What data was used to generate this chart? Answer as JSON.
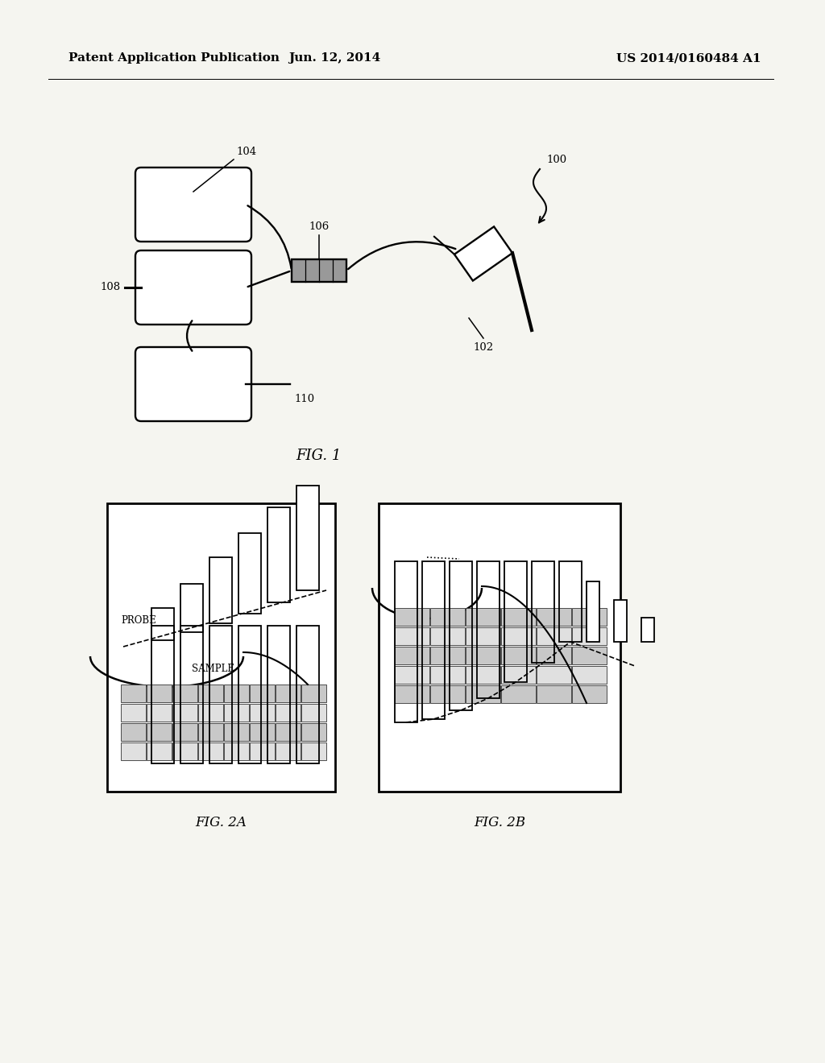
{
  "bg_color": "#f5f5f0",
  "header_left": "Patent Application Publication",
  "header_center": "Jun. 12, 2014",
  "header_right": "US 2014/0160484 A1",
  "fig1_label": "FIG. 1",
  "fig2a_label": "FIG. 2A",
  "fig2b_label": "FIG. 2B",
  "label_100": "100",
  "label_102": "102",
  "label_104": "104",
  "label_106": "106",
  "label_108": "108",
  "label_110": "110",
  "probe_text": "PROBE",
  "sample_text": "SAMPLE"
}
